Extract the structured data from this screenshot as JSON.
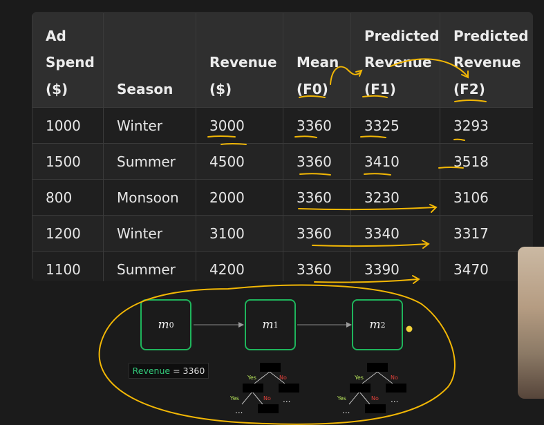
{
  "table": {
    "headers": [
      [
        "Ad",
        "Spend",
        "($)"
      ],
      [
        "Season"
      ],
      [
        "Revenue",
        "($)"
      ],
      [
        "Mean",
        "(F0)"
      ],
      [
        "Predicted",
        "Revenue",
        "(F1)"
      ],
      [
        "Predicted",
        "Revenue",
        "(F2)"
      ]
    ],
    "rows": [
      [
        "1000",
        "Winter",
        "3000",
        "3360",
        "3325",
        "3293"
      ],
      [
        "1500",
        "Summer",
        "4500",
        "3360",
        "3410",
        "3518"
      ],
      [
        "800",
        "Monsoon",
        "2000",
        "3360",
        "3230",
        "3106"
      ],
      [
        "1200",
        "Winter",
        "3100",
        "3360",
        "3340",
        "3317"
      ],
      [
        "1100",
        "Summer",
        "4200",
        "3360",
        "3390",
        "3470"
      ]
    ]
  },
  "models": [
    {
      "symbol": "m",
      "sub": "0"
    },
    {
      "symbol": "m",
      "sub": "1"
    },
    {
      "symbol": "m",
      "sub": "2"
    }
  ],
  "badge": {
    "label": "Revenue",
    "eq": " = ",
    "value": "3360"
  },
  "tree": {
    "yes": "Yes",
    "no": "No",
    "ellipsis": "..."
  },
  "colors": {
    "box_border": "#1fb55c",
    "annotation": "#f2b705",
    "badge_text": "#33c97a",
    "tree_yes": "#b6e35a",
    "tree_no": "#e0413a"
  }
}
